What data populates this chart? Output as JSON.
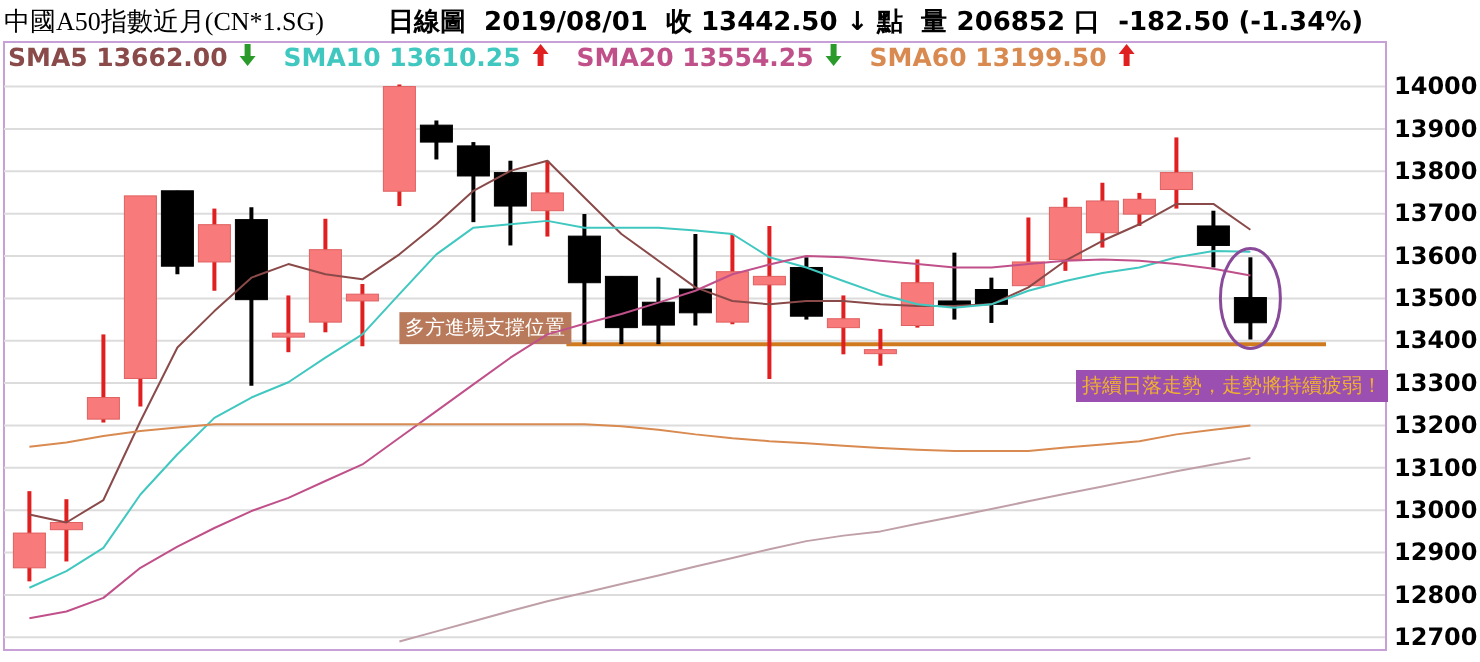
{
  "chart_data": {
    "type": "candlestick",
    "title": "中國A50指數近月(CN*1.SG)",
    "subtitle": "日線圖  2019/08/01  收 13442.50 ↓ 點  量 206852 口  -182.50 (-1.34%)",
    "categories": [
      null,
      null,
      null,
      null,
      null,
      null,
      null,
      null,
      null,
      null,
      null,
      null,
      null,
      null,
      null,
      null,
      null,
      null,
      null,
      null,
      null,
      null,
      null,
      null,
      null,
      null,
      null,
      null,
      null,
      null,
      null,
      null,
      null,
      null
    ],
    "ohlc": [
      [
        12864,
        13045,
        12832,
        12946
      ],
      [
        12954,
        13026,
        12879,
        12971
      ],
      [
        13215,
        13415,
        13207,
        13266
      ],
      [
        13311,
        13742,
        13245,
        13742
      ],
      [
        13754,
        13754,
        13557,
        13576
      ],
      [
        13586,
        13712,
        13518,
        13674
      ],
      [
        13686,
        13715,
        13294,
        13497
      ],
      [
        13413,
        13507,
        13373,
        13418
      ],
      [
        13444,
        13688,
        13420,
        13615
      ],
      [
        13494,
        13534,
        13387,
        13510
      ],
      [
        13753,
        14005,
        13718,
        14000
      ],
      [
        13909,
        13920,
        13828,
        13869
      ],
      [
        13860,
        13869,
        13680,
        13789
      ],
      [
        13797,
        13825,
        13625,
        13718
      ],
      [
        13707,
        13825,
        13646,
        13749
      ],
      [
        13647,
        13699,
        13392,
        13537
      ],
      [
        13552,
        13552,
        13392,
        13431
      ],
      [
        13491,
        13549,
        13392,
        13437
      ],
      [
        13522,
        13652,
        13436,
        13466
      ],
      [
        13444,
        13652,
        13439,
        13563
      ],
      [
        13532,
        13671,
        13310,
        13552
      ],
      [
        13573,
        13597,
        13450,
        13458
      ],
      [
        13431,
        13507,
        13368,
        13452
      ],
      [
        13373,
        13428,
        13341,
        13379
      ],
      [
        13436,
        13592,
        13431,
        13537
      ],
      [
        13494,
        13608,
        13450,
        13489
      ],
      [
        13521,
        13549,
        13442,
        13486
      ],
      [
        13530,
        13691,
        13530,
        13586
      ],
      [
        13592,
        13738,
        13565,
        13715
      ],
      [
        13655,
        13773,
        13620,
        13730
      ],
      [
        13699,
        13749,
        13671,
        13734
      ],
      [
        13757,
        13880,
        13712,
        13797
      ],
      [
        13671,
        13707,
        13573,
        13625
      ],
      [
        13502,
        13597,
        13403,
        13442.5
      ]
    ],
    "series": [
      {
        "type": "line",
        "name": "SMA5 13662.00",
        "color": "#8a4a4a",
        "values": [
          12990,
          12971,
          13024,
          13210,
          13384,
          13470,
          13549,
          13581,
          13557,
          13545,
          13604,
          13675,
          13754,
          13801,
          13825,
          13738,
          13652,
          13589,
          13526,
          13494,
          13486,
          13494,
          13494,
          13486,
          13482,
          13482,
          13486,
          13526,
          13589,
          13636,
          13675,
          13723,
          13723,
          13662
        ]
      },
      {
        "type": "line",
        "name": "SMA10 13610.25",
        "color": "#40c8c0",
        "values": [
          12817,
          12856,
          12911,
          13037,
          13132,
          13218,
          13266,
          13302,
          13360,
          13415,
          13510,
          13604,
          13667,
          13675,
          13683,
          13667,
          13667,
          13667,
          13660,
          13652,
          13597,
          13573,
          13541,
          13510,
          13486,
          13478,
          13486,
          13518,
          13541,
          13560,
          13573,
          13597,
          13612,
          13610
        ]
      },
      {
        "type": "line",
        "name": "SMA20 13554.25",
        "color": "#c0508a",
        "values": [
          12745,
          12761,
          12793,
          12864,
          12914,
          12958,
          12998,
          13029,
          13069,
          13108,
          13171,
          13234,
          13297,
          13360,
          13415,
          13440,
          13463,
          13490,
          13518,
          13557,
          13580,
          13600,
          13597,
          13589,
          13581,
          13573,
          13573,
          13581,
          13589,
          13592,
          13589,
          13581,
          13570,
          13554
        ]
      },
      {
        "type": "line",
        "name": "SMA60 13199.50",
        "color": "#d98a50",
        "values": [
          13150,
          13160,
          13175,
          13187,
          13195,
          13203,
          13203,
          13203,
          13203,
          13203,
          13203,
          13203,
          13203,
          13203,
          13203,
          13203,
          13198,
          13190,
          13179,
          13170,
          13163,
          13158,
          13152,
          13147,
          13143,
          13140,
          13140,
          13140,
          13148,
          13155,
          13163,
          13179,
          13190,
          13200
        ]
      },
      {
        "type": "line",
        "color": "#c0a0a8",
        "values": [
          null,
          null,
          null,
          null,
          null,
          null,
          null,
          null,
          null,
          null,
          12690,
          12714,
          12738,
          12762,
          12785,
          12805,
          12826,
          12846,
          12867,
          12887,
          12908,
          12927,
          12940,
          12950,
          12968,
          12985,
          13003,
          13021,
          13039,
          13056,
          13074,
          13092,
          13108,
          13123
        ]
      }
    ],
    "ylim": [
      12670,
      14025
    ],
    "yticks": [
      12700,
      12800,
      12900,
      13000,
      13100,
      13200,
      13300,
      13400,
      13500,
      13600,
      13700,
      13800,
      13900,
      14000
    ],
    "tick_labels": "y",
    "grid": "y",
    "legend": "top left",
    "ref_lines": [
      {
        "axis": "y",
        "value": 13392,
        "label": "多方進場支撐位置",
        "color": "#d07a20"
      }
    ],
    "annotations": [
      "持續日落走勢，走勢將持續疲弱！"
    ]
  }
}
